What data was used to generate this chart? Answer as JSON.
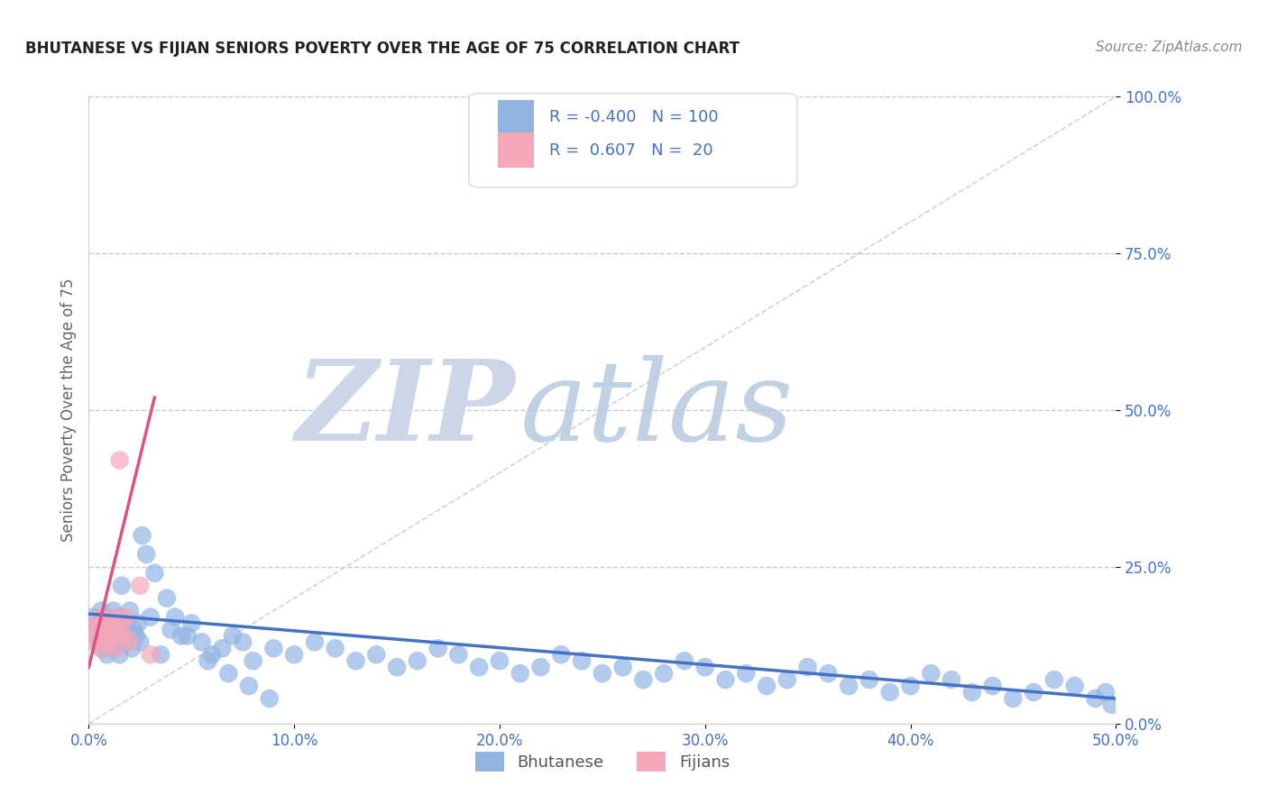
{
  "title": "BHUTANESE VS FIJIAN SENIORS POVERTY OVER THE AGE OF 75 CORRELATION CHART",
  "source": "Source: ZipAtlas.com",
  "ylabel_label": "Seniors Poverty Over the Age of 75",
  "bhutanese_R": -0.4,
  "bhutanese_N": 100,
  "fijian_R": 0.607,
  "fijian_N": 20,
  "bhutanese_color": "#92b4e3",
  "fijian_color": "#f4a7b9",
  "bhutanese_line_color": "#4472c4",
  "fijian_line_color": "#e05080",
  "diagonal_color": "#c8d4e0",
  "watermark_zip_color": "#cdd8e8",
  "watermark_atlas_color": "#b8cce0",
  "background_color": "#ffffff",
  "grid_color": "#c0ccdd",
  "title_color": "#222222",
  "source_color": "#888888",
  "tick_color": "#4472c4",
  "ylabel_color": "#666666",
  "legend_text_color": "#4472c4",
  "x_lim": [
    0.0,
    0.5
  ],
  "y_lim": [
    0.0,
    1.0
  ],
  "bhutanese_x": [
    0.002,
    0.003,
    0.004,
    0.005,
    0.005,
    0.006,
    0.006,
    0.007,
    0.007,
    0.008,
    0.008,
    0.009,
    0.009,
    0.01,
    0.01,
    0.011,
    0.011,
    0.012,
    0.012,
    0.013,
    0.013,
    0.014,
    0.014,
    0.015,
    0.015,
    0.016,
    0.016,
    0.017,
    0.018,
    0.019,
    0.02,
    0.021,
    0.022,
    0.023,
    0.024,
    0.025,
    0.03,
    0.035,
    0.04,
    0.045,
    0.05,
    0.055,
    0.06,
    0.065,
    0.07,
    0.075,
    0.08,
    0.09,
    0.1,
    0.11,
    0.12,
    0.13,
    0.14,
    0.15,
    0.16,
    0.17,
    0.18,
    0.19,
    0.2,
    0.21,
    0.22,
    0.23,
    0.24,
    0.25,
    0.26,
    0.27,
    0.28,
    0.29,
    0.3,
    0.31,
    0.32,
    0.33,
    0.34,
    0.35,
    0.36,
    0.37,
    0.38,
    0.39,
    0.4,
    0.41,
    0.42,
    0.43,
    0.44,
    0.45,
    0.46,
    0.47,
    0.48,
    0.49,
    0.495,
    0.498,
    0.026,
    0.028,
    0.032,
    0.038,
    0.042,
    0.048,
    0.058,
    0.068,
    0.078,
    0.088
  ],
  "bhutanese_y": [
    0.17,
    0.15,
    0.14,
    0.16,
    0.13,
    0.18,
    0.12,
    0.15,
    0.14,
    0.16,
    0.13,
    0.17,
    0.11,
    0.15,
    0.14,
    0.16,
    0.13,
    0.18,
    0.12,
    0.15,
    0.14,
    0.16,
    0.13,
    0.17,
    0.11,
    0.15,
    0.22,
    0.14,
    0.16,
    0.13,
    0.18,
    0.12,
    0.15,
    0.14,
    0.16,
    0.13,
    0.17,
    0.11,
    0.15,
    0.14,
    0.16,
    0.13,
    0.11,
    0.12,
    0.14,
    0.13,
    0.1,
    0.12,
    0.11,
    0.13,
    0.12,
    0.1,
    0.11,
    0.09,
    0.1,
    0.12,
    0.11,
    0.09,
    0.1,
    0.08,
    0.09,
    0.11,
    0.1,
    0.08,
    0.09,
    0.07,
    0.08,
    0.1,
    0.09,
    0.07,
    0.08,
    0.06,
    0.07,
    0.09,
    0.08,
    0.06,
    0.07,
    0.05,
    0.06,
    0.08,
    0.07,
    0.05,
    0.06,
    0.04,
    0.05,
    0.07,
    0.06,
    0.04,
    0.05,
    0.03,
    0.3,
    0.27,
    0.24,
    0.2,
    0.17,
    0.14,
    0.1,
    0.08,
    0.06,
    0.04
  ],
  "fijian_x": [
    0.002,
    0.003,
    0.004,
    0.005,
    0.006,
    0.007,
    0.008,
    0.009,
    0.01,
    0.011,
    0.012,
    0.013,
    0.014,
    0.015,
    0.016,
    0.017,
    0.018,
    0.02,
    0.025,
    0.03
  ],
  "fijian_y": [
    0.15,
    0.13,
    0.16,
    0.14,
    0.17,
    0.12,
    0.15,
    0.13,
    0.16,
    0.14,
    0.17,
    0.12,
    0.15,
    0.42,
    0.16,
    0.14,
    0.17,
    0.13,
    0.22,
    0.11
  ],
  "bhutanese_line_x": [
    0.0,
    0.5
  ],
  "bhutanese_line_y": [
    0.175,
    0.04
  ],
  "fijian_line_x": [
    0.0,
    0.032
  ],
  "fijian_line_y": [
    0.09,
    0.52
  ]
}
